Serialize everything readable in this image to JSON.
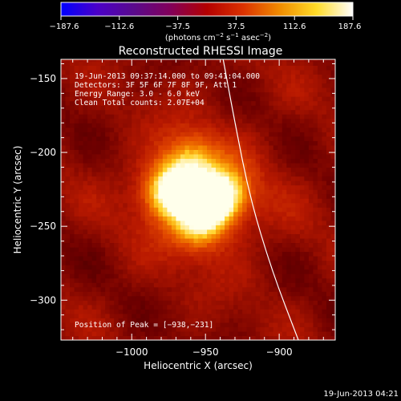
{
  "colorbar": {
    "ticks": [
      -187.6,
      -112.6,
      -37.5,
      37.5,
      112.6,
      187.6
    ],
    "tick_labels": [
      "−187.6",
      "−112.6",
      "−37.5",
      "37.5",
      "112.6",
      "187.6"
    ],
    "range": [
      -187.6,
      187.6
    ],
    "units_html": "(photons cm<tspan baseline-shift=\"super\" font-size=\"7\">−2</tspan> s<tspan baseline-shift=\"super\" font-size=\"7\">−1</tspan> asec<tspan baseline-shift=\"super\" font-size=\"7\">−2</tspan>)",
    "colors": [
      "#0000ff",
      "#4b00c8",
      "#5a0a8c",
      "#82005a",
      "#b40000",
      "#dc3200",
      "#f08c00",
      "#ffdc28",
      "#ffffff"
    ]
  },
  "chart_data": {
    "type": "heatmap",
    "title": "Reconstructed RHESSI Image",
    "xlabel": "Heliocentric X (arcsec)",
    "ylabel": "Heliocentric Y (arcsec)",
    "xlim": [
      -1048,
      -862
    ],
    "ylim": [
      -327,
      -137
    ],
    "x_ticks": [
      -1000,
      -950,
      -900
    ],
    "x_tick_labels": [
      "−1000",
      "−950",
      "−900"
    ],
    "y_ticks": [
      -150,
      -200,
      -250,
      -300
    ],
    "y_tick_labels": [
      "−150",
      "−200",
      "−250",
      "−300"
    ],
    "peak_position": [
      -938,
      -231
    ],
    "sources": [
      {
        "x": -975,
        "y": -226,
        "value": 180
      },
      {
        "x": -940,
        "y": -230,
        "value": 187.6
      },
      {
        "x": -955,
        "y": -248,
        "value": 150
      },
      {
        "x": -960,
        "y": -205,
        "value": 135
      }
    ],
    "background_level": 70,
    "limb": [
      [
        -938,
        -137
      ],
      [
        -930,
        -180
      ],
      [
        -920,
        -230
      ],
      [
        -905,
        -280
      ],
      [
        -887,
        -327
      ]
    ],
    "annotations": [
      "19-Jun-2013 09:37:14.000 to 09:41:04.000",
      "Detectors: 3F 5F 6F 7F 8F 9F, Att 1",
      "Energy Range: 3.0 - 6.0 keV",
      "Clean    Total counts: 2.07E+04"
    ],
    "peak_label": "Position of Peak = [−938,−231]"
  },
  "footer": {
    "timestamp": "19-Jun-2013 04:21"
  }
}
